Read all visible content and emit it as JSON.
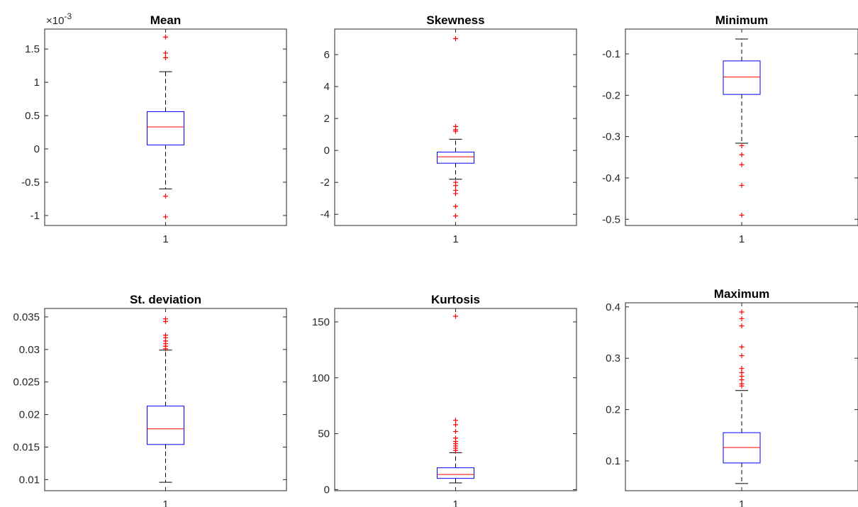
{
  "chart_data": [
    {
      "type": "box",
      "title": "Mean",
      "categories": [
        "1"
      ],
      "exponent_label": "×10",
      "exponent_power": "-3",
      "ylim": [
        -1.15,
        1.8
      ],
      "yticks": [
        -1,
        -0.5,
        0,
        0.5,
        1,
        1.5
      ],
      "ytick_labels": [
        "-1",
        "-0.5",
        "0",
        "0.5",
        "1",
        "1.5"
      ],
      "box": {
        "lower_whisker": -0.6,
        "q1": 0.06,
        "median": 0.33,
        "q3": 0.56,
        "upper_whisker": 1.16
      },
      "outliers": [
        1.68,
        1.44,
        1.37,
        -0.71,
        -1.02
      ]
    },
    {
      "type": "box",
      "title": "Skewness",
      "categories": [
        "1"
      ],
      "ylim": [
        -4.7,
        7.6
      ],
      "yticks": [
        -4,
        -2,
        0,
        2,
        4,
        6
      ],
      "ytick_labels": [
        "-4",
        "-2",
        "0",
        "2",
        "4",
        "6"
      ],
      "box": {
        "lower_whisker": -1.8,
        "q1": -0.8,
        "median": -0.4,
        "q3": -0.1,
        "upper_whisker": 0.7
      },
      "outliers": [
        7.0,
        1.5,
        1.3,
        1.2,
        -2.0,
        -2.2,
        -2.5,
        -2.7,
        -3.5,
        -4.1
      ]
    },
    {
      "type": "box",
      "title": "Minimum",
      "categories": [
        "1"
      ],
      "ylim": [
        -0.515,
        -0.04
      ],
      "yticks": [
        -0.5,
        -0.4,
        -0.3,
        -0.2,
        -0.1
      ],
      "ytick_labels": [
        "-0.5",
        "-0.4",
        "-0.3",
        "-0.2",
        "-0.1"
      ],
      "box": {
        "lower_whisker": -0.316,
        "q1": -0.198,
        "median": -0.156,
        "q3": -0.117,
        "upper_whisker": -0.064
      },
      "outliers": [
        -0.322,
        -0.344,
        -0.368,
        -0.418,
        -0.49
      ]
    },
    {
      "type": "box",
      "title": "St. deviation",
      "categories": [
        "1"
      ],
      "ylim": [
        0.0083,
        0.0363
      ],
      "yticks": [
        0.01,
        0.015,
        0.02,
        0.025,
        0.03,
        0.035
      ],
      "ytick_labels": [
        "0.01",
        "0.015",
        "0.02",
        "0.025",
        "0.03",
        "0.035"
      ],
      "box": {
        "lower_whisker": 0.0096,
        "q1": 0.0154,
        "median": 0.0178,
        "q3": 0.0213,
        "upper_whisker": 0.0299
      },
      "outliers": [
        0.0347,
        0.0343,
        0.0322,
        0.0318,
        0.0313,
        0.0309,
        0.0305,
        0.0301
      ]
    },
    {
      "type": "box",
      "title": "Kurtosis",
      "categories": [
        "1"
      ],
      "ylim": [
        -1,
        162
      ],
      "yticks": [
        0,
        50,
        100,
        150
      ],
      "ytick_labels": [
        "0",
        "50",
        "100",
        "150"
      ],
      "box": {
        "lower_whisker": 6,
        "q1": 10,
        "median": 13.5,
        "q3": 19.5,
        "upper_whisker": 33
      },
      "outliers": [
        155,
        62,
        58,
        52,
        46,
        43,
        41,
        39,
        37,
        35
      ]
    },
    {
      "type": "box",
      "title": "Maximum",
      "categories": [
        "1"
      ],
      "ylim": [
        0.042,
        0.408
      ],
      "yticks": [
        0.1,
        0.2,
        0.3,
        0.4
      ],
      "ytick_labels": [
        "0.1",
        "0.2",
        "0.3",
        "0.4"
      ],
      "box": {
        "lower_whisker": 0.056,
        "q1": 0.096,
        "median": 0.126,
        "q3": 0.155,
        "upper_whisker": 0.237
      },
      "outliers": [
        0.39,
        0.377,
        0.363,
        0.322,
        0.305,
        0.28,
        0.272,
        0.265,
        0.258,
        0.25,
        0.246
      ]
    }
  ]
}
